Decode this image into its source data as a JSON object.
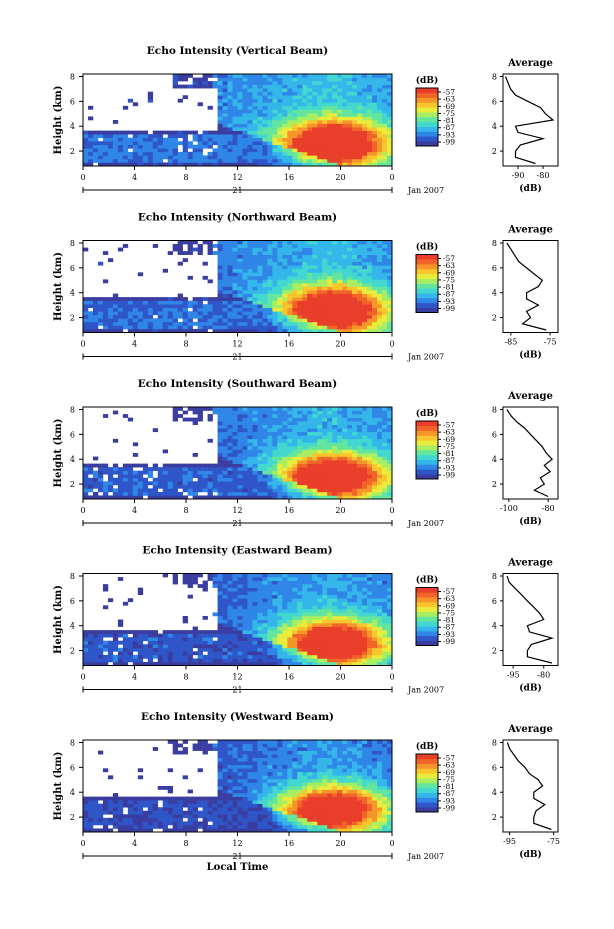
{
  "figure": {
    "colorbar_unit": "(dB)",
    "colorbar_ticks": [
      "-57",
      "-63",
      "-69",
      "-75",
      "-81",
      "-87",
      "-93",
      "-99"
    ],
    "colorbar_colors": [
      "#3a3da0",
      "#2f56c9",
      "#2f86e6",
      "#35b6ea",
      "#42d8d0",
      "#63e59e",
      "#a8ee62",
      "#e9ec3a",
      "#f8c52d",
      "#f6962a",
      "#f06428",
      "#e83e2a"
    ],
    "height_label": "Height (km)",
    "height_ticks": [
      "2",
      "4",
      "6",
      "8"
    ],
    "time_ticks": [
      "0",
      "4",
      "8",
      "12",
      "16",
      "20",
      "0"
    ],
    "day_label": "21",
    "date_label": "Jan 2007",
    "avg_title": "Average",
    "avg_xlabel": "(dB)",
    "xaxis_label": "Local Time"
  },
  "chart_data": [
    {
      "type": "heatmap",
      "title": "Echo Intensity (Vertical Beam)",
      "ylabel": "Height (km)",
      "ylim": [
        0.8,
        8.2
      ],
      "xlabel": "Local Time",
      "xlim": [
        0,
        24
      ],
      "colorbar_range": [
        -99,
        -57
      ],
      "average_profile": {
        "title": "Average",
        "xlabel": "(dB)",
        "xticks": [
          "-90",
          "-80"
        ],
        "xlim": [
          -96,
          -74
        ],
        "height": [
          1,
          1.5,
          2,
          2.5,
          3,
          3.5,
          4,
          4.5,
          5,
          5.5,
          6,
          6.5,
          7,
          7.5,
          8
        ],
        "values": [
          -83,
          -91,
          -91,
          -89,
          -80,
          -90,
          -91,
          -76,
          -79,
          -81,
          -86,
          -91,
          -93,
          -94,
          -95
        ]
      }
    },
    {
      "type": "heatmap",
      "title": "Echo Intensity (Northward Beam)",
      "ylabel": "Height (km)",
      "ylim": [
        0.8,
        8.2
      ],
      "xlabel": "Local Time",
      "xlim": [
        0,
        24
      ],
      "colorbar_range": [
        -99,
        -57
      ],
      "average_profile": {
        "title": "Average",
        "xlabel": "(dB)",
        "xticks": [
          "-85",
          "-75"
        ],
        "xlim": [
          -87,
          -73
        ],
        "height": [
          1,
          1.5,
          2,
          2.5,
          3,
          3.5,
          4,
          4.5,
          5,
          5.5,
          6,
          6.5,
          7,
          7.5,
          8
        ],
        "values": [
          -76,
          -82,
          -80,
          -81,
          -78,
          -81,
          -81,
          -78,
          -77,
          -79,
          -81,
          -83,
          -84,
          -85,
          -86
        ]
      }
    },
    {
      "type": "heatmap",
      "title": "Echo Intensity (Southward Beam)",
      "ylabel": "Height (km)",
      "ylim": [
        0.8,
        8.2
      ],
      "xlabel": "Local Time",
      "xlim": [
        0,
        24
      ],
      "colorbar_range": [
        -99,
        -57
      ],
      "average_profile": {
        "title": "Average",
        "xlabel": "(dB)",
        "xticks": [
          "-100",
          "-80"
        ],
        "xlim": [
          -103,
          -75
        ],
        "height": [
          1,
          1.5,
          2,
          2.5,
          3,
          3.5,
          4,
          4.5,
          5,
          5.5,
          6,
          6.5,
          7,
          7.5,
          8
        ],
        "values": [
          -80,
          -87,
          -82,
          -84,
          -79,
          -82,
          -78,
          -81,
          -83,
          -86,
          -89,
          -92,
          -96,
          -99,
          -101
        ]
      }
    },
    {
      "type": "heatmap",
      "title": "Echo Intensity (Eastward Beam)",
      "ylabel": "Height (km)",
      "ylim": [
        0.8,
        8.2
      ],
      "xlabel": "Local Time",
      "xlim": [
        0,
        24
      ],
      "colorbar_range": [
        -99,
        -57
      ],
      "average_profile": {
        "title": "Average",
        "xlabel": "(dB)",
        "xticks": [
          "-95",
          "-80"
        ],
        "xlim": [
          -100,
          -73
        ],
        "height": [
          1,
          1.5,
          2,
          2.5,
          3,
          3.5,
          4,
          4.5,
          5,
          5.5,
          6,
          6.5,
          7,
          7.5,
          8
        ],
        "values": [
          -76,
          -88,
          -88,
          -86,
          -76,
          -87,
          -88,
          -80,
          -82,
          -85,
          -88,
          -91,
          -94,
          -97,
          -98
        ]
      }
    },
    {
      "type": "heatmap",
      "title": "Echo Intensity (Westward Beam)",
      "ylabel": "Height (km)",
      "ylim": [
        0.8,
        8.2
      ],
      "xlabel": "Local Time",
      "xlim": [
        0,
        24
      ],
      "colorbar_range": [
        -99,
        -57
      ],
      "average_profile": {
        "title": "Average",
        "xlabel": "(dB)",
        "xticks": [
          "-95",
          "-75"
        ],
        "xlim": [
          -98,
          -73
        ],
        "height": [
          1,
          1.5,
          2,
          2.5,
          3,
          3.5,
          4,
          4.5,
          5,
          5.5,
          6,
          6.5,
          7,
          7.5,
          8
        ],
        "values": [
          -76,
          -84,
          -84,
          -83,
          -79,
          -84,
          -84,
          -80,
          -82,
          -86,
          -88,
          -91,
          -93,
          -95,
          -96
        ]
      }
    }
  ]
}
